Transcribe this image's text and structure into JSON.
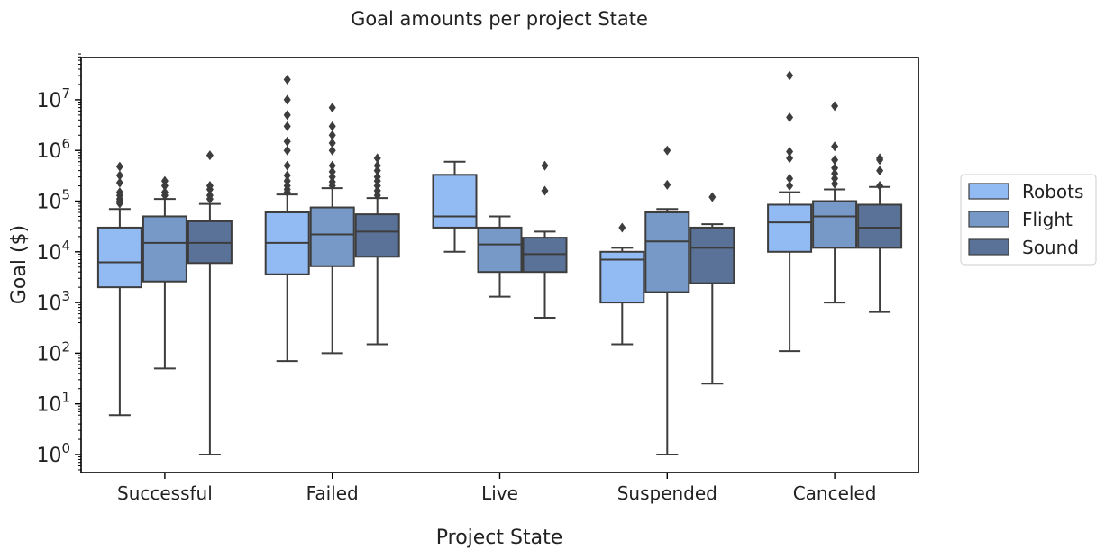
{
  "chart_data": {
    "type": "box",
    "title": "Goal amounts per project State",
    "xlabel": "Project State",
    "ylabel": "Goal ($)",
    "yscale": "log",
    "ylim": [
      0.45,
      80000000
    ],
    "ytick_exponents": [
      0,
      1,
      2,
      3,
      4,
      5,
      6,
      7
    ],
    "legend_position": "right-outside",
    "categories": [
      "Successful",
      "Failed",
      "Live",
      "Suspended",
      "Canceled"
    ],
    "series": [
      {
        "name": "Robots",
        "color": "#92baf3",
        "boxes": [
          {
            "whislo": 6,
            "q1": 2000,
            "med": 6200,
            "q3": 30000,
            "whishi": 70000,
            "fliers": [
              90000,
              100000,
              110000,
              130000,
              150000,
              230000,
              320000,
              480000
            ]
          },
          {
            "whislo": 70,
            "q1": 3600,
            "med": 15000,
            "q3": 60000,
            "whishi": 135000,
            "fliers": [
              150000,
              170000,
              200000,
              250000,
              320000,
              500000,
              1000000,
              1500000,
              3000000,
              5000000,
              10000000,
              25000000
            ]
          },
          {
            "whislo": 10000,
            "q1": 30000,
            "med": 50000,
            "q3": 330000,
            "whishi": 600000,
            "fliers": []
          },
          {
            "whislo": 150,
            "q1": 1000,
            "med": 7000,
            "q3": 10000,
            "whishi": 12000,
            "fliers": [
              30000
            ]
          },
          {
            "whislo": 110,
            "q1": 10000,
            "med": 38000,
            "q3": 85000,
            "whishi": 150000,
            "fliers": [
              200000,
              280000,
              700000,
              950000,
              4500000,
              30000000
            ]
          }
        ]
      },
      {
        "name": "Flight",
        "color": "#7799c7",
        "boxes": [
          {
            "whislo": 50,
            "q1": 2600,
            "med": 15000,
            "q3": 50000,
            "whishi": 110000,
            "fliers": [
              130000,
              150000,
              200000,
              250000
            ]
          },
          {
            "whislo": 100,
            "q1": 5200,
            "med": 22000,
            "q3": 75000,
            "whishi": 180000,
            "fliers": [
              200000,
              240000,
              300000,
              380000,
              500000,
              1000000,
              1400000,
              2000000,
              3000000,
              7000000
            ]
          },
          {
            "whislo": 1300,
            "q1": 4000,
            "med": 14000,
            "q3": 30000,
            "whishi": 50000,
            "fliers": []
          },
          {
            "whislo": 1,
            "q1": 1600,
            "med": 16000,
            "q3": 60000,
            "whishi": 70000,
            "fliers": [
              210000,
              1000000
            ]
          },
          {
            "whislo": 1000,
            "q1": 12000,
            "med": 50000,
            "q3": 100000,
            "whishi": 170000,
            "fliers": [
              220000,
              280000,
              350000,
              450000,
              650000,
              1200000,
              7500000
            ]
          }
        ]
      },
      {
        "name": "Sound",
        "color": "#5a7297",
        "boxes": [
          {
            "whislo": 1,
            "q1": 6000,
            "med": 15000,
            "q3": 40000,
            "whishi": 88000,
            "fliers": [
              110000,
              130000,
              170000,
              200000,
              800000
            ]
          },
          {
            "whislo": 150,
            "q1": 8000,
            "med": 25000,
            "q3": 55000,
            "whishi": 115000,
            "fliers": [
              130000,
              160000,
              200000,
              250000,
              300000,
              400000,
              500000,
              700000
            ]
          },
          {
            "whislo": 500,
            "q1": 4000,
            "med": 9000,
            "q3": 19000,
            "whishi": 25000,
            "fliers": [
              160000,
              500000
            ]
          },
          {
            "whislo": 25,
            "q1": 2400,
            "med": 12000,
            "q3": 30000,
            "whishi": 35000,
            "fliers": [
              120000
            ]
          },
          {
            "whislo": 650,
            "q1": 12000,
            "med": 30000,
            "q3": 85000,
            "whishi": 190000,
            "fliers": [
              200000,
              400000,
              650000,
              700000
            ]
          }
        ]
      }
    ]
  }
}
